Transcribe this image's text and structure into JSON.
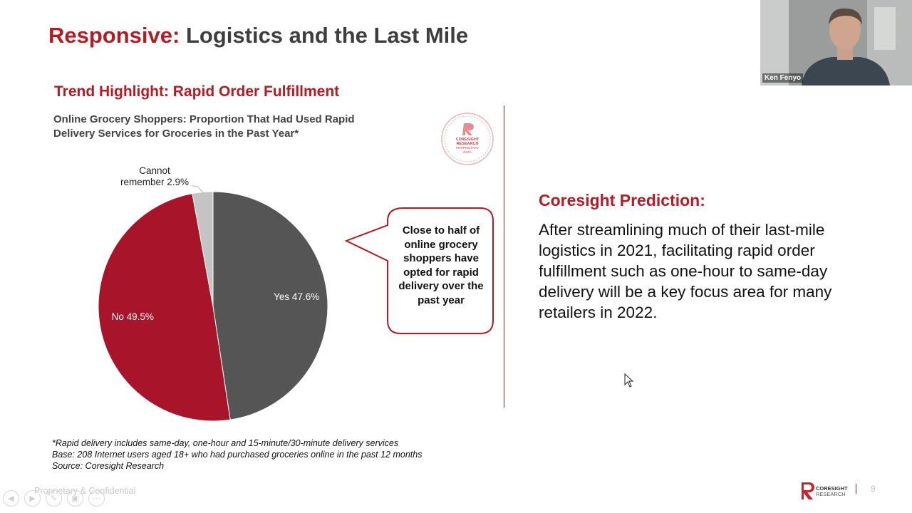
{
  "slide": {
    "title_accent": "Responsive:",
    "title_rest": "Logistics and the Last Mile",
    "trend_heading": "Trend Highlight: Rapid Order Fulfillment",
    "chart_subtitle": "Online Grocery Shoppers: Proportion That Had Used Rapid Delivery Services for Groceries in the Past Year*",
    "stamp": {
      "line1": "CORESIGHT",
      "line2": "RESEARCH",
      "line3": "PROPRIETARY",
      "line4": "DATA"
    },
    "callout_text": "Close to half of online grocery shoppers have opted for rapid delivery over the past year",
    "prediction_heading": "Coresight Prediction:",
    "prediction_body": "After streamlining much of their last-mile logistics in 2021, facilitating rapid order fulfillment such as one-hour to same-day delivery will be a key focus area for many retailers in 2022.",
    "footnote1": "*Rapid delivery includes same-day, one-hour and 15-minute/30-minute delivery services",
    "footnote2": "Base: 208 Internet users aged 18+ who had purchased groceries online in the past 12 months",
    "footnote3": "Source: Coresight Research",
    "confidential": "Proprietary & Confidential",
    "logo_line1": "CORESIGHT",
    "logo_line2": "RESEARCH",
    "page_number": "9"
  },
  "chart_data": {
    "type": "pie",
    "slices": [
      {
        "label": "Yes",
        "value": 47.6,
        "display": "Yes 47.6%",
        "color": "#555555"
      },
      {
        "label": "No",
        "value": 49.5,
        "display": "No 49.5%",
        "color": "#a8152a"
      },
      {
        "label": "Cannot remember",
        "value": 2.9,
        "display_line1": "Cannot",
        "display_line2": "remember 2.9%",
        "color": "#c4c4c4"
      }
    ]
  },
  "video": {
    "participant_name": "Ken Fenyo"
  },
  "colors": {
    "accent": "#b51b22",
    "dark_text": "#3e3e3e"
  },
  "icons": {
    "nav": [
      "arrow-left-icon",
      "arrow-right-icon",
      "pen-icon",
      "slides-icon",
      "more-icon"
    ]
  }
}
